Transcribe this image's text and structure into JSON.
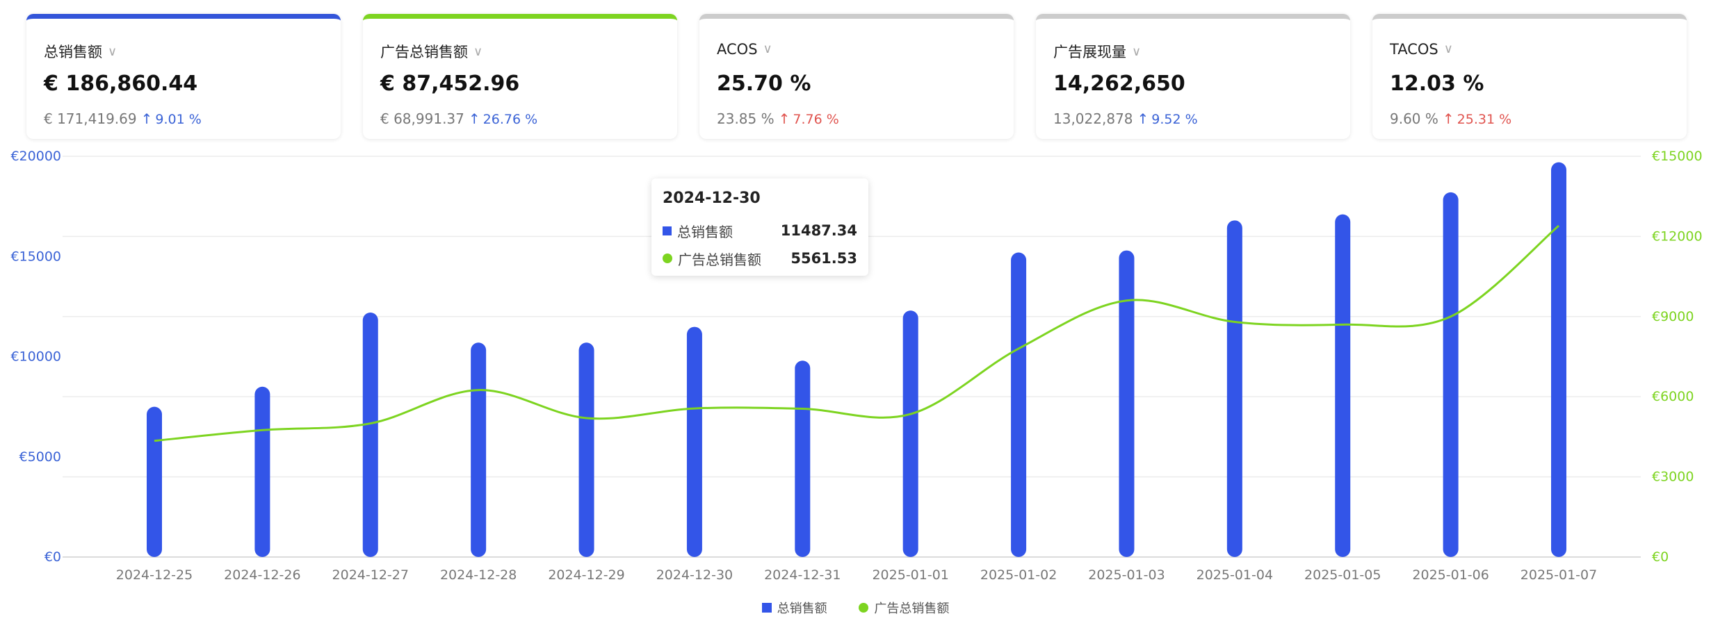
{
  "cards": [
    {
      "title": "总销售额",
      "value": "€ 186,860.44",
      "compare": "€ 171,419.69",
      "change": "9.01 %",
      "direction": "up",
      "change_color": "#3b63d6",
      "accent": "#3355d9"
    },
    {
      "title": "广告总销售额",
      "value": "€ 87,452.96",
      "compare": "€ 68,991.37",
      "change": "26.76 %",
      "direction": "up",
      "change_color": "#3b63d6",
      "accent": "#7dd420"
    },
    {
      "title": "ACOS",
      "value": "25.70 %",
      "compare": "23.85 %",
      "change": "7.76 %",
      "direction": "up",
      "change_color": "#e0534e",
      "accent": "#cccccc"
    },
    {
      "title": "广告展现量",
      "value": "14,262,650",
      "compare": "13,022,878",
      "change": "9.52 %",
      "direction": "up",
      "change_color": "#3b63d6",
      "accent": "#cccccc"
    },
    {
      "title": "TACOS",
      "value": "12.03 %",
      "compare": "9.60 %",
      "change": "25.31 %",
      "direction": "up",
      "change_color": "#e0534e",
      "accent": "#cccccc"
    }
  ],
  "chart_data": {
    "type": "bar",
    "categories": [
      "2024-12-25",
      "2024-12-26",
      "2024-12-27",
      "2024-12-28",
      "2024-12-29",
      "2024-12-30",
      "2024-12-31",
      "2025-01-01",
      "2025-01-02",
      "2025-01-03",
      "2025-01-04",
      "2025-01-05",
      "2025-01-06",
      "2025-01-07"
    ],
    "series": [
      {
        "name": "总销售额",
        "type": "bar",
        "axis": "left",
        "color": "#3355e8",
        "values": [
          7500,
          8500,
          12200,
          10700,
          10700,
          11487.34,
          9800,
          12300,
          15200,
          15300,
          16800,
          17100,
          18200,
          19700
        ]
      },
      {
        "name": "广告总销售额",
        "type": "line",
        "axis": "right",
        "color": "#7dd420",
        "values": [
          4350,
          4750,
          5000,
          6250,
          5200,
          5561.53,
          5550,
          5350,
          7800,
          9600,
          8800,
          8700,
          9000,
          12400
        ]
      }
    ],
    "y_left": {
      "min": 0,
      "max": 20000,
      "ticks": [
        "€0",
        "€5000",
        "€10000",
        "€15000",
        "€20000"
      ],
      "color": "#3b63d6"
    },
    "y_right": {
      "min": 0,
      "max": 15000,
      "ticks": [
        "€0",
        "€3000",
        "€6000",
        "€9000",
        "€12000",
        "€15000"
      ],
      "color": "#7dd420"
    },
    "grid": true,
    "legend_position": "bottom-center"
  },
  "tooltip": {
    "date": "2024-12-30",
    "rows": [
      {
        "name": "总销售额",
        "value": "11487.34"
      },
      {
        "name": "广告总销售额",
        "value": "5561.53"
      }
    ]
  },
  "legend": [
    "总销售额",
    "广告总销售额"
  ],
  "icons": {
    "dropdown": "chevron-down-icon",
    "trend": "arrow-up-icon"
  }
}
